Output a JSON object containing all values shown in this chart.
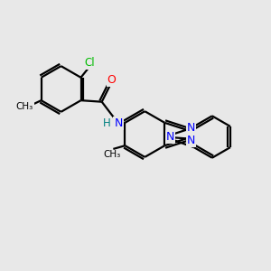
{
  "bg_color": "#e8e8e8",
  "bond_color": "#000000",
  "bond_width": 1.6,
  "atom_colors": {
    "N": "#0000ff",
    "O": "#ff0000",
    "Cl": "#00bb00",
    "H": "#008080",
    "C": "#000000"
  }
}
